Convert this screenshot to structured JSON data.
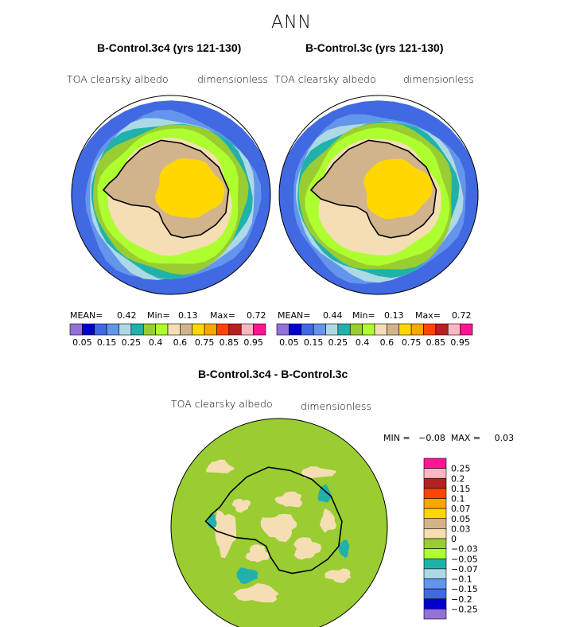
{
  "season": "ANN",
  "colors": {
    "abs_scale": [
      "#9370DB",
      "#0000CD",
      "#4169E1",
      "#6495ED",
      "#ADD8E6",
      "#20B2AA",
      "#9ACD32",
      "#ADFF2F",
      "#F5DEB3",
      "#D2B48C",
      "#FFD700",
      "#FFA500",
      "#FF4500",
      "#B22222",
      "#FFB6C1",
      "#FF1493"
    ],
    "diff_scale": [
      "#9370DB",
      "#0000CD",
      "#4169E1",
      "#6495ED",
      "#ADD8E6",
      "#20B2AA",
      "#ADFF2F",
      "#9ACD32",
      "#F5DEB3",
      "#D2B48C",
      "#FFD700",
      "#FFA500",
      "#FF4500",
      "#B22222",
      "#FFB6C1",
      "#FF1493"
    ],
    "coastline": "#000000"
  },
  "chart_data": [
    {
      "type": "heatmap",
      "projection": "polar stereographic (south pole)",
      "title": "B-Control.3c4 (yrs 121-130)",
      "variable": "TOA clearsky albedo",
      "units": "dimensionless",
      "stats": {
        "mean_label": "MEAN=",
        "mean": "0.42",
        "min_label": "Min=",
        "min": "0.13",
        "max_label": "Max=",
        "max": "0.72"
      },
      "contour_levels": [
        0.05,
        0.1,
        0.15,
        0.2,
        0.25,
        0.3,
        0.35,
        0.4,
        0.5,
        0.6,
        0.7,
        0.75,
        0.8,
        0.85,
        0.9,
        0.95
      ],
      "tick_labels": [
        "0.05",
        "0.15",
        "0.25",
        "0.4",
        "0.6",
        "0.75",
        "0.85",
        "0.95"
      ]
    },
    {
      "type": "heatmap",
      "projection": "polar stereographic (south pole)",
      "title": "B-Control.3c (yrs 121-130)",
      "variable": "TOA clearsky albedo",
      "units": "dimensionless",
      "stats": {
        "mean_label": "MEAN=",
        "mean": "0.44",
        "min_label": "Min=",
        "min": "0.13",
        "max_label": "Max=",
        "max": "0.72"
      },
      "contour_levels": [
        0.05,
        0.1,
        0.15,
        0.2,
        0.25,
        0.3,
        0.35,
        0.4,
        0.5,
        0.6,
        0.7,
        0.75,
        0.8,
        0.85,
        0.9,
        0.95
      ],
      "tick_labels": [
        "0.05",
        "0.15",
        "0.25",
        "0.4",
        "0.6",
        "0.75",
        "0.85",
        "0.95"
      ]
    },
    {
      "type": "heatmap",
      "projection": "polar stereographic (south pole)",
      "title": "B-Control.3c4 - B-Control.3c",
      "variable": "TOA clearsky albedo",
      "units": "dimensionless",
      "stats": {
        "text": "MIN =   −0.08  MAX =     0.03"
      },
      "tick_labels": [
        "0.25",
        "0.2",
        "0.15",
        "0.1",
        "0.07",
        "0.05",
        "0.03",
        "0",
        "−0.03",
        "−0.05",
        "−0.07",
        "−0.1",
        "−0.15",
        "−0.2",
        "−0.25"
      ]
    }
  ]
}
